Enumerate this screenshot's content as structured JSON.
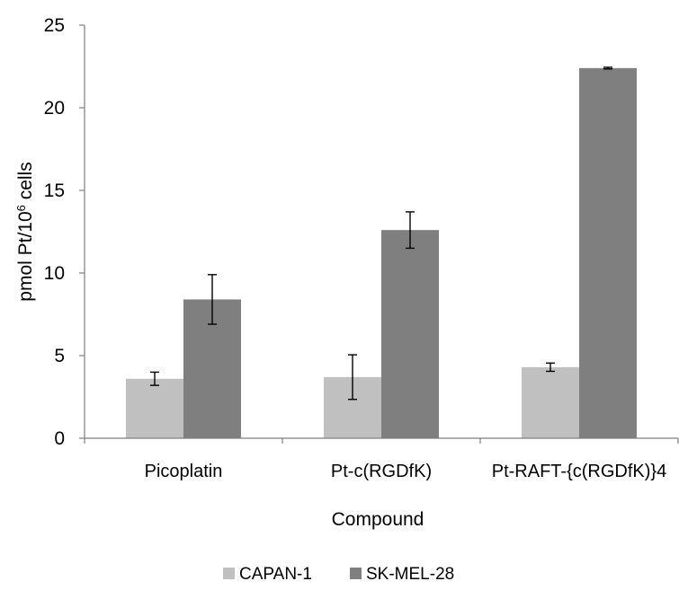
{
  "chart_data": {
    "type": "bar",
    "categories": [
      "Picoplatin",
      "Pt-c(RGDfK)",
      "Pt-RAFT-{c(RGDfK)}4"
    ],
    "series": [
      {
        "name": "CAPAN-1",
        "color": "#c0c0c0",
        "values": [
          3.6,
          3.7,
          4.3
        ],
        "errors": [
          0.4,
          1.35,
          0.25
        ]
      },
      {
        "name": "SK-MEL-28",
        "color": "#7f7f7f",
        "values": [
          8.4,
          12.6,
          22.4
        ],
        "errors": [
          1.5,
          1.1,
          0.05
        ]
      }
    ],
    "xlabel": "Compound",
    "ylabel": "pmol Pt/10",
    "ylabel_sup": "6",
    "ylabel_suffix": " cells",
    "ylim": [
      0,
      25
    ],
    "yticks": [
      0,
      5,
      10,
      15,
      20,
      25
    ],
    "grid": false,
    "legend_position": "bottom"
  }
}
